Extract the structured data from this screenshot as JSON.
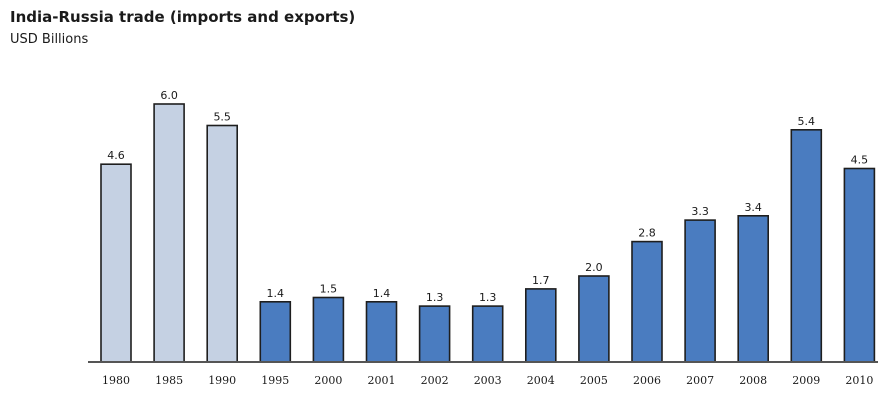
{
  "header": {
    "title": "India-Russia trade (imports and exports)",
    "subtitle": "USD Billions"
  },
  "chart_data": {
    "type": "bar",
    "title": "India-Russia trade (imports and exports)",
    "subtitle": "USD Billions",
    "ylabel": "USD Billions",
    "categories": [
      "1980",
      "1985",
      "1990",
      "1995",
      "2000",
      "2001",
      "2002",
      "2003",
      "2004",
      "2005",
      "2006",
      "2007",
      "2008",
      "2009",
      "2010"
    ],
    "values": [
      4.6,
      6.0,
      5.5,
      1.4,
      1.5,
      1.4,
      1.3,
      1.3,
      1.7,
      2.0,
      2.8,
      3.3,
      3.4,
      5.4,
      4.5
    ],
    "value_labels": [
      "4.6",
      "6.0",
      "5.5",
      "1.4",
      "1.5",
      "1.4",
      "1.3",
      "1.3",
      "1.7",
      "2.0",
      "2.8",
      "3.3",
      "3.4",
      "5.4",
      "4.5"
    ],
    "ylim": [
      0,
      6.0
    ],
    "grid": false,
    "legend": "none",
    "colors": {
      "soviet_era": "#c5d1e3",
      "post_soviet": "#4a7cc0",
      "outline": "#1e1e1e"
    },
    "color_groups": [
      "soviet_era",
      "soviet_era",
      "soviet_era",
      "post_soviet",
      "post_soviet",
      "post_soviet",
      "post_soviet",
      "post_soviet",
      "post_soviet",
      "post_soviet",
      "post_soviet",
      "post_soviet",
      "post_soviet",
      "post_soviet",
      "post_soviet"
    ]
  }
}
